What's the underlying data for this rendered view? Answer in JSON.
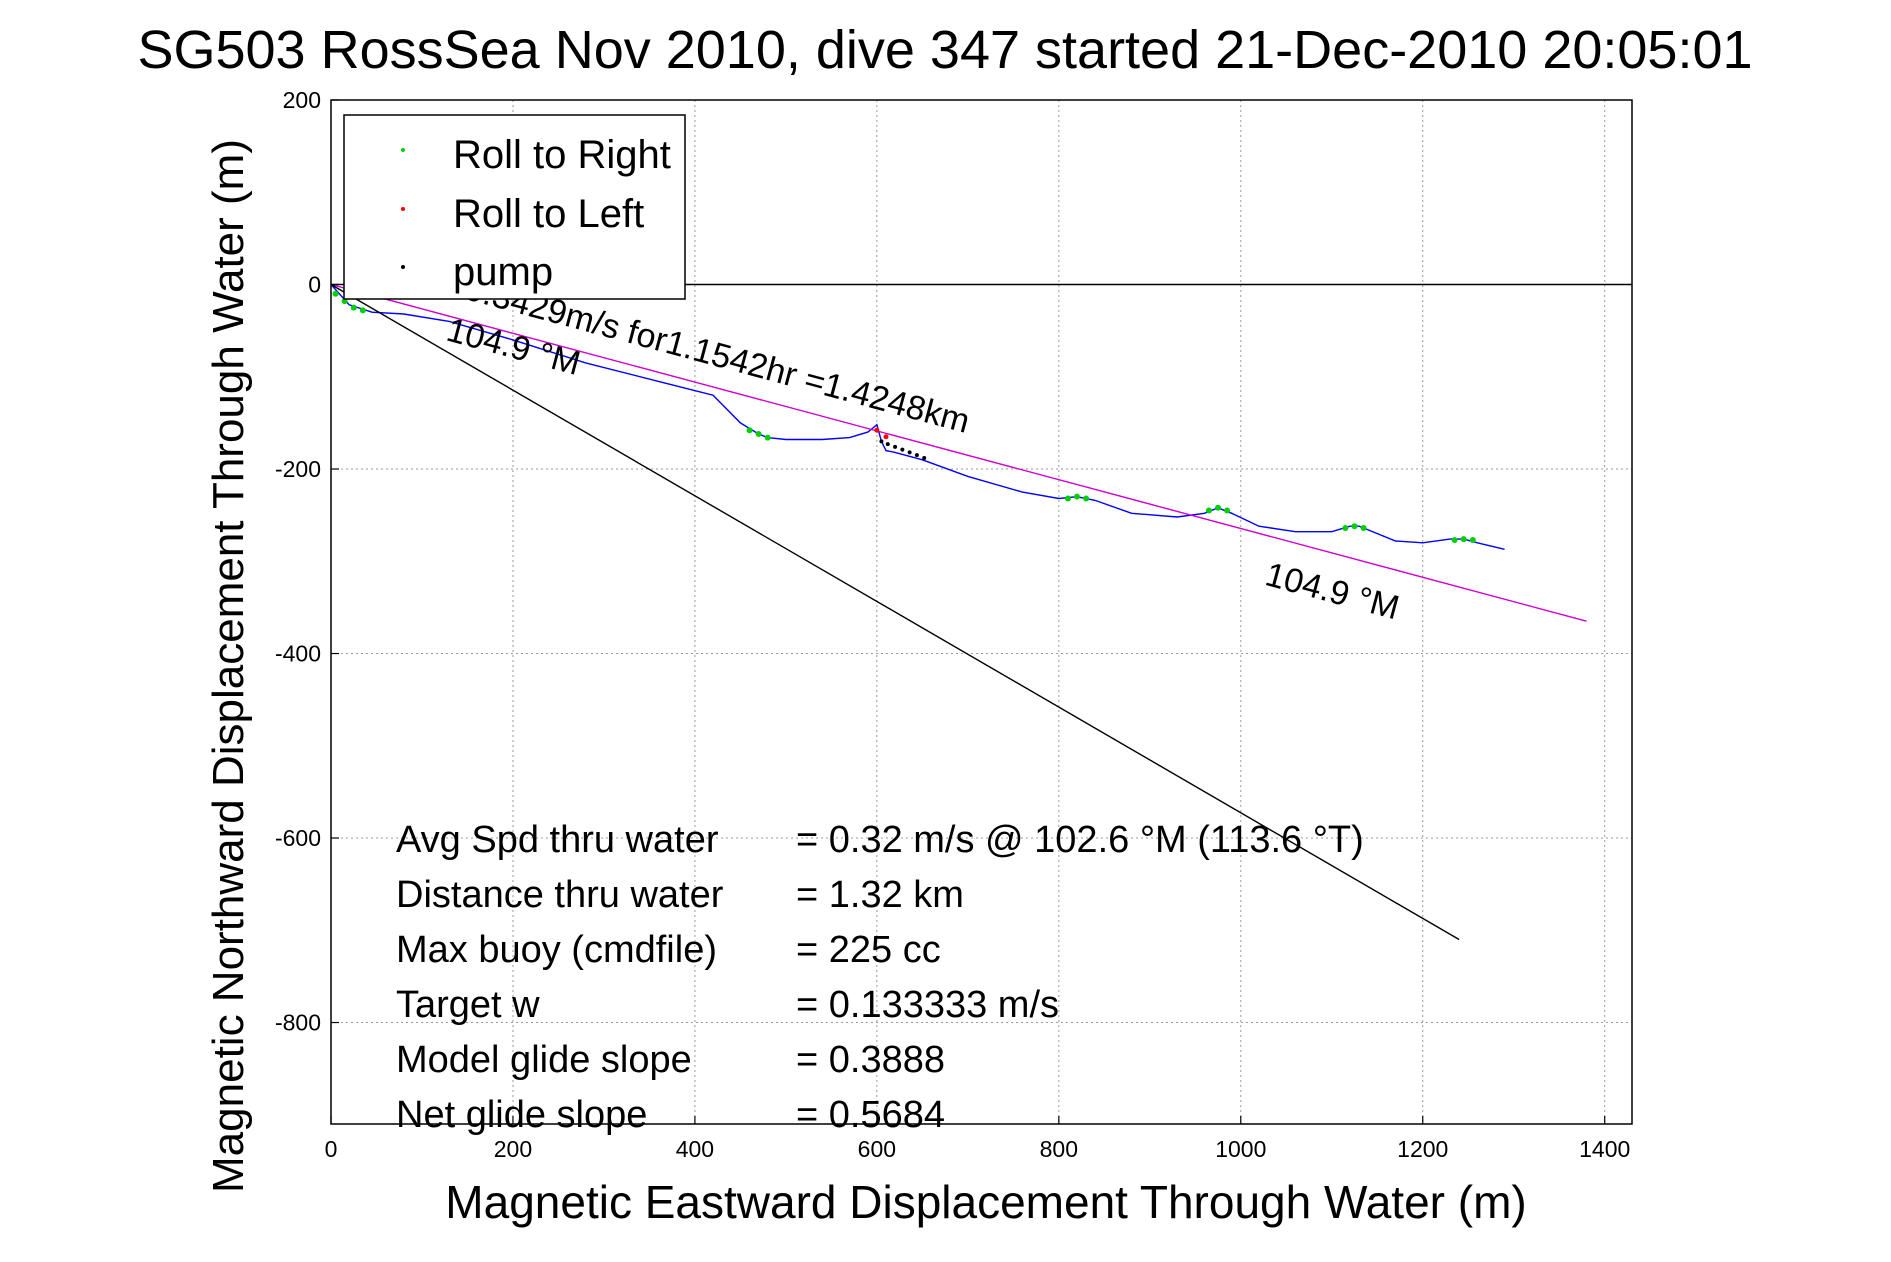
{
  "chart_data": {
    "type": "line",
    "title": "SG503 RossSea Nov 2010, dive 347 started 21-Dec-2010 20:05:01",
    "xlabel": "Magnetic Eastward Displacement Through Water (m)",
    "ylabel": "Magnetic Northward Displacement Through Water (m)",
    "xlim": [
      0,
      1430
    ],
    "ylim": [
      -910,
      200
    ],
    "xticks": [
      0,
      200,
      400,
      600,
      800,
      1000,
      1200,
      1400
    ],
    "yticks": [
      -800,
      -600,
      -400,
      -200,
      0,
      200
    ],
    "grid": true,
    "legend": {
      "position": "top-left",
      "entries": [
        {
          "label": "Roll to Right",
          "color": "#00d000"
        },
        {
          "label": "Roll to Left",
          "color": "#ff0000"
        },
        {
          "label": "pump",
          "color": "#000000"
        }
      ]
    },
    "series": [
      {
        "style": "track",
        "color": "#0000ff",
        "x": [
          0,
          20,
          45,
          80,
          130,
          200,
          280,
          360,
          420,
          450,
          470,
          480,
          500,
          540,
          570,
          590,
          600,
          605,
          610,
          620,
          650,
          700,
          760,
          800,
          820,
          840,
          880,
          930,
          960,
          975,
          990,
          1020,
          1060,
          1100,
          1120,
          1130,
          1140,
          1170,
          1200,
          1230,
          1245,
          1260,
          1290
        ],
        "y": [
          0,
          -22,
          -30,
          -32,
          -40,
          -60,
          -85,
          -105,
          -120,
          -150,
          -162,
          -166,
          -168,
          -168,
          -166,
          -160,
          -152,
          -170,
          -180,
          -182,
          -190,
          -208,
          -225,
          -232,
          -230,
          -234,
          -248,
          -252,
          -248,
          -242,
          -248,
          -262,
          -268,
          -268,
          -262,
          -262,
          -266,
          -278,
          -280,
          -276,
          -276,
          -280,
          -287
        ]
      },
      {
        "style": "heading-line",
        "color": "#d000d0",
        "x": [
          0,
          1380
        ],
        "y": [
          0,
          -365
        ]
      },
      {
        "style": "heading-line",
        "color": "#000000",
        "x": [
          0,
          1240
        ],
        "y": [
          0,
          -710
        ]
      },
      {
        "style": "reference-line",
        "color": "#000000",
        "x": [
          0,
          1430
        ],
        "y": [
          0,
          0
        ]
      }
    ],
    "roll_right_points": {
      "color": "#00d000",
      "x": [
        5,
        15,
        25,
        35,
        460,
        470,
        480,
        810,
        820,
        830,
        965,
        975,
        985,
        1115,
        1125,
        1135,
        1235,
        1245,
        1255
      ],
      "y": [
        -10,
        -18,
        -25,
        -28,
        -158,
        -162,
        -166,
        -232,
        -230,
        -232,
        -245,
        -242,
        -245,
        -264,
        -262,
        -264,
        -277,
        -276,
        -277
      ]
    },
    "roll_left_points": {
      "color": "#ff0000",
      "x": [
        600,
        610
      ],
      "y": [
        -158,
        -165
      ]
    },
    "pump_points": {
      "color": "#000000",
      "x": [
        605,
        612,
        620,
        628,
        636,
        644,
        652
      ],
      "y": [
        -170,
        -173,
        -176,
        -179,
        -182,
        -185,
        -188
      ]
    },
    "annotations": [
      {
        "text": "0.3429m/s for1.1542hr =1.4248km",
        "x": 145,
        "y": -15,
        "rotation": 15
      },
      {
        "text": "104.9 °M",
        "x": 125,
        "y": -60,
        "rotation": 15
      },
      {
        "text": "104.9 °M",
        "x": 1025,
        "y": -325,
        "rotation": 15
      }
    ],
    "stats": [
      {
        "label": "Avg Spd thru water",
        "value": "=  0.32 m/s @ 102.6 °M (113.6 °T)"
      },
      {
        "label": "Distance thru water",
        "value": "=  1.32 km"
      },
      {
        "label": "Max buoy (cmdfile)",
        "value": "= 225 cc"
      },
      {
        "label": "Target w",
        "value": "= 0.133333 m/s"
      },
      {
        "label": "Model glide slope",
        "value": "= 0.3888"
      },
      {
        "label": "Net glide slope",
        "value": "= 0.5684"
      }
    ]
  }
}
